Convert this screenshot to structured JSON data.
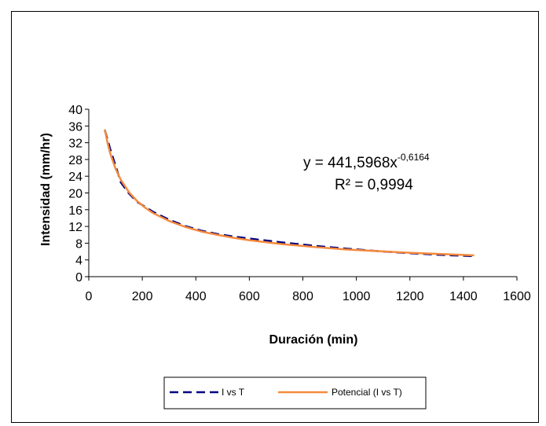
{
  "chart_data": {
    "type": "line",
    "title": "",
    "xlabel": "Duración (min)",
    "ylabel": "Intensidad (mm/hr)",
    "xlim": [
      0,
      1600
    ],
    "ylim": [
      0,
      40
    ],
    "xticks": [
      0,
      200,
      400,
      600,
      800,
      1000,
      1200,
      1400,
      1600
    ],
    "yticks": [
      0,
      4,
      8,
      12,
      16,
      20,
      24,
      28,
      32,
      36,
      40
    ],
    "grid": false,
    "legend_position": "bottom",
    "series": [
      {
        "name": "I vs T",
        "style": "dashed",
        "color": "#000080",
        "x": [
          60,
          80,
          120,
          150,
          180,
          240,
          300,
          360,
          420,
          480,
          540,
          600,
          720,
          840,
          960,
          1080,
          1200,
          1320,
          1440
        ],
        "y": [
          35.0,
          30.5,
          22.5,
          19.9,
          17.9,
          15.5,
          13.6,
          12.1,
          11.0,
          10.2,
          9.6,
          9.1,
          8.2,
          7.4,
          6.7,
          6.1,
          5.6,
          5.2,
          4.9
        ]
      },
      {
        "name": "Potencial (I vs T)",
        "style": "solid",
        "color": "#F58A3C",
        "trendline": {
          "coef": 441.5968,
          "exp": -0.6164
        },
        "x": [
          60,
          70,
          80,
          100,
          120,
          150,
          180,
          210,
          240,
          300,
          360,
          420,
          480,
          540,
          600,
          720,
          840,
          960,
          1080,
          1200,
          1320,
          1440
        ],
        "y": [
          35.2,
          32.0,
          29.5,
          25.8,
          23.1,
          20.2,
          18.1,
          16.5,
          15.2,
          13.3,
          11.9,
          10.8,
          10.0,
          9.3,
          8.7,
          7.8,
          7.1,
          6.5,
          6.1,
          5.7,
          5.4,
          5.1
        ]
      }
    ],
    "annotations": {
      "equation_base": "y = 441,5968x",
      "equation_exponent": "-0,6164",
      "r_squared": "R² = 0,9994"
    }
  },
  "legend": {
    "items": [
      {
        "label": "I vs T"
      },
      {
        "label": "Potencial (I vs T)"
      }
    ]
  }
}
